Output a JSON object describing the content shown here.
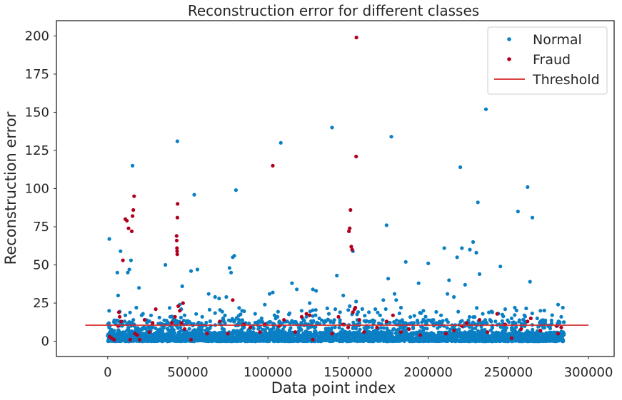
{
  "chart_data": {
    "type": "scatter",
    "title": "Reconstruction error for different classes",
    "xlabel": "Data point index",
    "ylabel": "Reconstruction error",
    "xlim": [
      -32000,
      316000
    ],
    "ylim": [
      -10,
      210
    ],
    "xticks": [
      0,
      50000,
      100000,
      150000,
      200000,
      250000,
      300000
    ],
    "xtick_labels": [
      "0",
      "50000",
      "100000",
      "150000",
      "200000",
      "250000",
      "300000"
    ],
    "yticks": [
      0,
      25,
      50,
      75,
      100,
      125,
      150,
      175,
      200
    ],
    "ytick_labels": [
      "0",
      "25",
      "50",
      "75",
      "100",
      "125",
      "150",
      "175",
      "200"
    ],
    "grid": false,
    "legend": {
      "position": "top-right",
      "entries": [
        {
          "label": "Normal",
          "kind": "marker",
          "color": "#0a7fc4"
        },
        {
          "label": "Fraud",
          "kind": "marker",
          "color": "#b0001e"
        },
        {
          "label": "Threshold",
          "kind": "line",
          "color": "#d62728"
        }
      ]
    },
    "threshold": {
      "y": 10.5,
      "x_start": -14000,
      "x_end": 300000,
      "color": "#d62728"
    },
    "series": [
      {
        "name": "Normal",
        "color": "#0a7fc4",
        "x_range": [
          0,
          284807
        ],
        "bulk_note_free": true,
        "points": [
          [
            1000,
            67
          ],
          [
            3000,
            4
          ],
          [
            6000,
            45
          ],
          [
            6500,
            30
          ],
          [
            8000,
            59
          ],
          [
            9000,
            11
          ],
          [
            11000,
            17
          ],
          [
            12500,
            45
          ],
          [
            13500,
            47
          ],
          [
            14500,
            53
          ],
          [
            15500,
            115
          ],
          [
            16000,
            14
          ],
          [
            19500,
            35
          ],
          [
            22000,
            18
          ],
          [
            25000,
            9
          ],
          [
            36000,
            50
          ],
          [
            39000,
            16
          ],
          [
            41000,
            14
          ],
          [
            43500,
            131
          ],
          [
            45000,
            24
          ],
          [
            46500,
            36
          ],
          [
            48000,
            17
          ],
          [
            52000,
            46
          ],
          [
            54000,
            96
          ],
          [
            56000,
            47
          ],
          [
            59000,
            16
          ],
          [
            63000,
            31
          ],
          [
            67000,
            29
          ],
          [
            69500,
            28
          ],
          [
            72000,
            15
          ],
          [
            74000,
            29
          ],
          [
            76000,
            48
          ],
          [
            77000,
            45
          ],
          [
            78000,
            55
          ],
          [
            79000,
            56
          ],
          [
            80000,
            99
          ],
          [
            82000,
            14
          ],
          [
            86000,
            12
          ],
          [
            92000,
            18
          ],
          [
            96000,
            15
          ],
          [
            98000,
            24
          ],
          [
            101000,
            31
          ],
          [
            103000,
            32
          ],
          [
            106000,
            16
          ],
          [
            108000,
            130
          ],
          [
            112000,
            13
          ],
          [
            115000,
            38
          ],
          [
            118000,
            34
          ],
          [
            121000,
            20
          ],
          [
            124000,
            16
          ],
          [
            126000,
            25
          ],
          [
            128000,
            34
          ],
          [
            130000,
            33
          ],
          [
            132000,
            15
          ],
          [
            135000,
            12
          ],
          [
            138000,
            18
          ],
          [
            140000,
            140
          ],
          [
            142000,
            21
          ],
          [
            143000,
            43
          ],
          [
            145000,
            19
          ],
          [
            147000,
            30
          ],
          [
            151000,
            23
          ],
          [
            153000,
            59
          ],
          [
            155000,
            26
          ],
          [
            157000,
            12
          ],
          [
            163000,
            19
          ],
          [
            167000,
            21
          ],
          [
            170000,
            17
          ],
          [
            172000,
            27
          ],
          [
            174000,
            76
          ],
          [
            175000,
            41
          ],
          [
            177000,
            134
          ],
          [
            179000,
            31
          ],
          [
            180000,
            27
          ],
          [
            183000,
            22
          ],
          [
            186000,
            52
          ],
          [
            191000,
            12
          ],
          [
            194000,
            38
          ],
          [
            197000,
            20
          ],
          [
            200000,
            51
          ],
          [
            205000,
            12
          ],
          [
            208000,
            17
          ],
          [
            210000,
            61
          ],
          [
            212000,
            31
          ],
          [
            213000,
            40
          ],
          [
            216000,
            29
          ],
          [
            218000,
            55
          ],
          [
            220000,
            114
          ],
          [
            221000,
            61
          ],
          [
            223000,
            37
          ],
          [
            226000,
            60
          ],
          [
            228000,
            65
          ],
          [
            230000,
            58
          ],
          [
            231000,
            91
          ],
          [
            232000,
            44
          ],
          [
            234000,
            18
          ],
          [
            236000,
            152
          ],
          [
            240000,
            19
          ],
          [
            242000,
            13
          ],
          [
            245000,
            49
          ],
          [
            248000,
            21
          ],
          [
            252000,
            15
          ],
          [
            254000,
            22
          ],
          [
            256000,
            85
          ],
          [
            260000,
            17
          ],
          [
            262000,
            101
          ],
          [
            263500,
            39
          ],
          [
            265000,
            81
          ],
          [
            268000,
            15
          ],
          [
            270000,
            20
          ],
          [
            273000,
            12
          ],
          [
            276000,
            10
          ],
          [
            281000,
            24
          ],
          [
            283000,
            16
          ],
          [
            284000,
            22
          ]
        ]
      },
      {
        "name": "Fraud",
        "color": "#b0001e",
        "points": [
          [
            1200,
            3
          ],
          [
            2500,
            2
          ],
          [
            4000,
            1
          ],
          [
            6500,
            10
          ],
          [
            7000,
            19
          ],
          [
            7500,
            16
          ],
          [
            8500,
            13
          ],
          [
            9500,
            53
          ],
          [
            11000,
            80
          ],
          [
            12000,
            79
          ],
          [
            13000,
            74
          ],
          [
            14000,
            1
          ],
          [
            15000,
            72
          ],
          [
            15500,
            82
          ],
          [
            16000,
            86
          ],
          [
            16500,
            95
          ],
          [
            17000,
            5
          ],
          [
            18500,
            4
          ],
          [
            20000,
            1
          ],
          [
            23000,
            14
          ],
          [
            26000,
            6
          ],
          [
            28000,
            12
          ],
          [
            30000,
            21
          ],
          [
            40000,
            12
          ],
          [
            42000,
            16
          ],
          [
            43000,
            69
          ],
          [
            43100,
            66
          ],
          [
            43200,
            61
          ],
          [
            43300,
            59
          ],
          [
            43400,
            57
          ],
          [
            43500,
            81
          ],
          [
            43600,
            90
          ],
          [
            44000,
            23
          ],
          [
            45000,
            20
          ],
          [
            46000,
            12
          ],
          [
            47000,
            25
          ],
          [
            48000,
            8
          ],
          [
            52000,
            1
          ],
          [
            62000,
            5
          ],
          [
            70000,
            13
          ],
          [
            75000,
            5
          ],
          [
            78000,
            27
          ],
          [
            85000,
            11
          ],
          [
            89000,
            9
          ],
          [
            95000,
            6
          ],
          [
            98000,
            11
          ],
          [
            103000,
            115
          ],
          [
            107000,
            10
          ],
          [
            110000,
            14
          ],
          [
            117000,
            6
          ],
          [
            121000,
            16
          ],
          [
            124000,
            18
          ],
          [
            126000,
            17
          ],
          [
            128000,
            1
          ],
          [
            140000,
            5
          ],
          [
            144000,
            16
          ],
          [
            147000,
            11
          ],
          [
            150000,
            9
          ],
          [
            150500,
            72
          ],
          [
            151000,
            74
          ],
          [
            151500,
            86
          ],
          [
            152000,
            62
          ],
          [
            152500,
            60
          ],
          [
            153000,
            19
          ],
          [
            154000,
            21
          ],
          [
            154500,
            22
          ],
          [
            155000,
            121
          ],
          [
            155200,
            199
          ],
          [
            157000,
            14
          ],
          [
            160000,
            6
          ],
          [
            168000,
            9
          ],
          [
            174000,
            13
          ],
          [
            178000,
            17
          ],
          [
            183000,
            6
          ],
          [
            188000,
            8
          ],
          [
            195000,
            4
          ],
          [
            211000,
            5
          ],
          [
            216000,
            7
          ],
          [
            221000,
            10
          ],
          [
            224000,
            12
          ],
          [
            232000,
            14
          ],
          [
            237000,
            6
          ],
          [
            243000,
            18
          ],
          [
            248000,
            11
          ],
          [
            252000,
            2
          ],
          [
            258000,
            8
          ],
          [
            262000,
            13
          ],
          [
            264000,
            15
          ],
          [
            270000,
            7
          ],
          [
            280000,
            10
          ],
          [
            281000,
            5
          ],
          [
            283000,
            9
          ]
        ]
      }
    ]
  }
}
